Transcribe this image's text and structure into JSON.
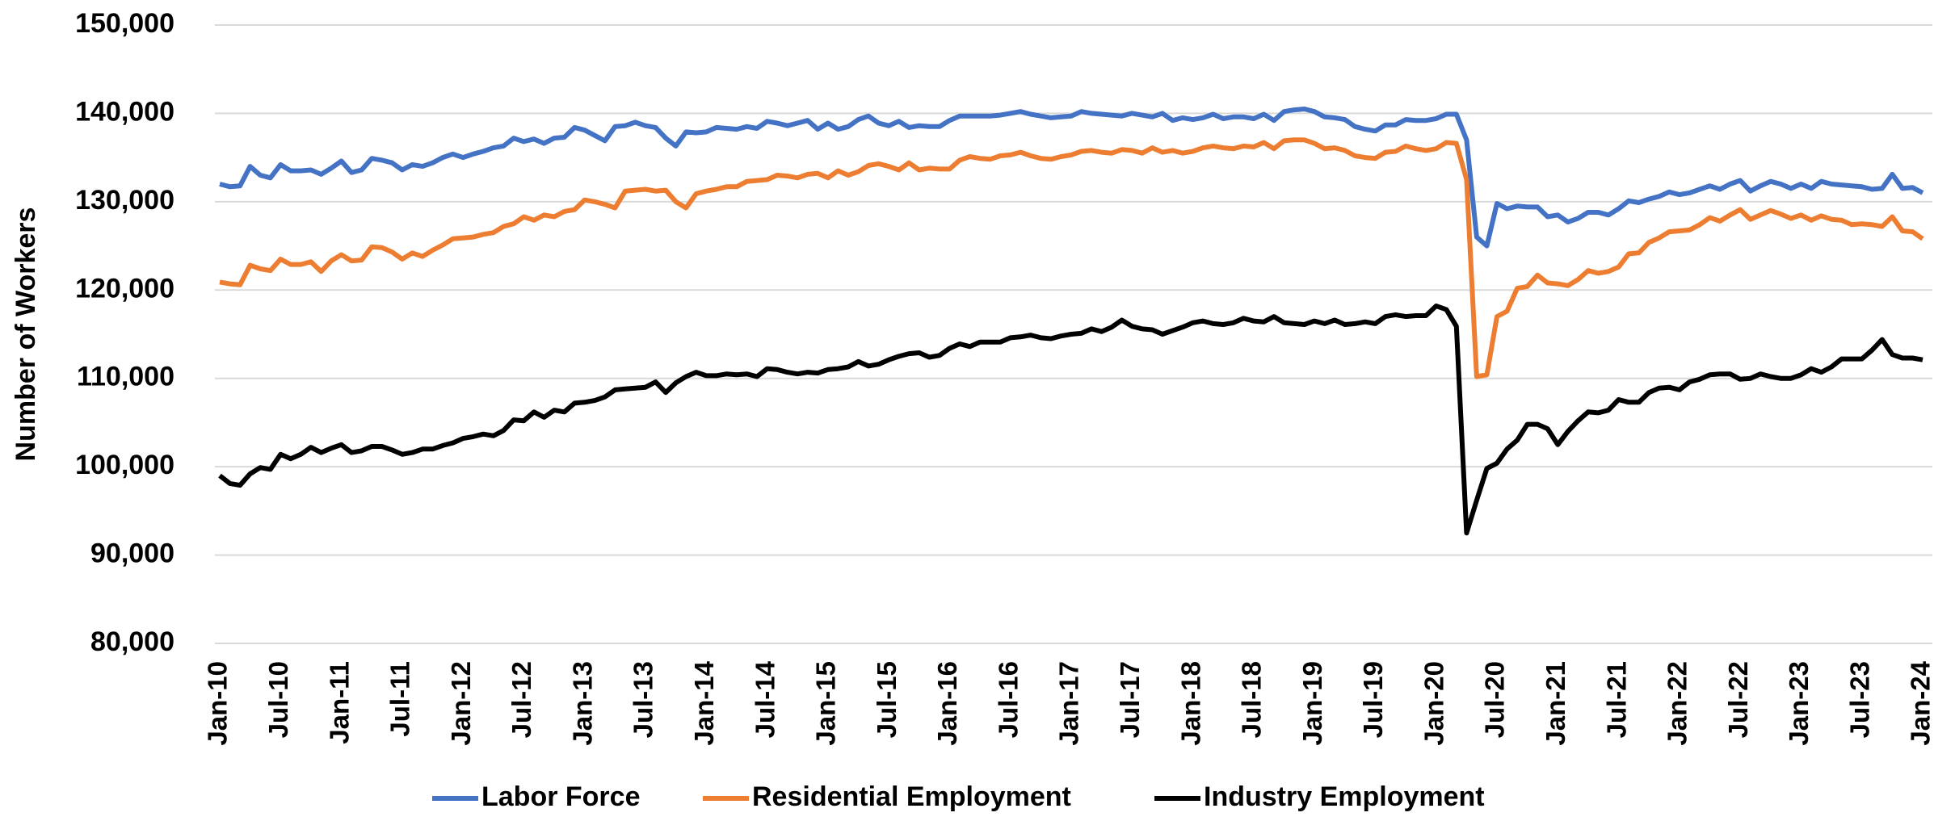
{
  "chart_data": {
    "type": "line",
    "y_label": "Number of Workers",
    "categories": [
      "Jan-10",
      null,
      null,
      null,
      null,
      null,
      "Jul-10",
      null,
      null,
      null,
      null,
      null,
      "Jan-11",
      null,
      null,
      null,
      null,
      null,
      "Jul-11",
      null,
      null,
      null,
      null,
      null,
      "Jan-12",
      null,
      null,
      null,
      null,
      null,
      "Jul-12",
      null,
      null,
      null,
      null,
      null,
      "Jan-13",
      null,
      null,
      null,
      null,
      null,
      "Jul-13",
      null,
      null,
      null,
      null,
      null,
      "Jan-14",
      null,
      null,
      null,
      null,
      null,
      "Jul-14",
      null,
      null,
      null,
      null,
      null,
      "Jan-15",
      null,
      null,
      null,
      null,
      null,
      "Jul-15",
      null,
      null,
      null,
      null,
      null,
      "Jan-16",
      null,
      null,
      null,
      null,
      null,
      "Jul-16",
      null,
      null,
      null,
      null,
      null,
      "Jan-17",
      null,
      null,
      null,
      null,
      null,
      "Jul-17",
      null,
      null,
      null,
      null,
      null,
      "Jan-18",
      null,
      null,
      null,
      null,
      null,
      "Jul-18",
      null,
      null,
      null,
      null,
      null,
      "Jan-19",
      null,
      null,
      null,
      null,
      null,
      "Jul-19",
      null,
      null,
      null,
      null,
      null,
      "Jan-20",
      null,
      null,
      null,
      null,
      null,
      "Jul-20",
      null,
      null,
      null,
      null,
      null,
      "Jan-21",
      null,
      null,
      null,
      null,
      null,
      "Jul-21",
      null,
      null,
      null,
      null,
      null,
      "Jan-22",
      null,
      null,
      null,
      null,
      null,
      "Jul-22",
      null,
      null,
      null,
      null,
      null,
      "Jan-23",
      null,
      null,
      null,
      null,
      null,
      "Jul-23",
      null,
      null,
      null,
      null,
      null,
      "Jan-24"
    ],
    "series": [
      {
        "name": "Labor Force",
        "color": "#4472c4",
        "values": [
          132000,
          131700,
          131800,
          134000,
          133000,
          132700,
          134200,
          133500,
          133500,
          133600,
          133100,
          133800,
          134600,
          133300,
          133600,
          134900,
          134700,
          134400,
          133600,
          134200,
          134000,
          134400,
          135000,
          135400,
          135000,
          135400,
          135700,
          136100,
          136300,
          137200,
          136800,
          137100,
          136600,
          137200,
          137300,
          138400,
          138100,
          137500,
          136900,
          138500,
          138600,
          139000,
          138600,
          138400,
          137200,
          136300,
          137900,
          137800,
          137900,
          138400,
          138300,
          138200,
          138500,
          138300,
          139100,
          138900,
          138600,
          138900,
          139200,
          138200,
          138900,
          138200,
          138500,
          139300,
          139700,
          138900,
          138600,
          139100,
          138400,
          138600,
          138500,
          138500,
          139200,
          139700,
          139700,
          139700,
          139700,
          139800,
          140000,
          140200,
          139900,
          139700,
          139500,
          139600,
          139700,
          140200,
          140000,
          139900,
          139800,
          139700,
          140000,
          139800,
          139600,
          140000,
          139200,
          139500,
          139300,
          139500,
          139900,
          139400,
          139600,
          139600,
          139400,
          139900,
          139200,
          140200,
          140400,
          140500,
          140200,
          139600,
          139500,
          139300,
          138500,
          138200,
          138000,
          138700,
          138700,
          139300,
          139200,
          139200,
          139400,
          139900,
          139900,
          137000,
          126000,
          125000,
          129800,
          129200,
          129500,
          129400,
          129400,
          128300,
          128500,
          127700,
          128100,
          128800,
          128800,
          128500,
          129200,
          130100,
          129900,
          130300,
          130600,
          131100,
          130800,
          131000,
          131400,
          131800,
          131400,
          132000,
          132400,
          131200,
          131800,
          132300,
          132000,
          131500,
          132000,
          131500,
          132300,
          132000,
          131900,
          131800,
          131700,
          131400,
          131500,
          133100,
          131500,
          131600,
          131000
        ]
      },
      {
        "name": "Residential Employment",
        "color": "#ed7d31",
        "values": [
          120900,
          120700,
          120600,
          122800,
          122400,
          122200,
          123500,
          122900,
          122900,
          123200,
          122100,
          123300,
          124000,
          123300,
          123400,
          124900,
          124800,
          124300,
          123500,
          124200,
          123800,
          124500,
          125100,
          125800,
          125900,
          126000,
          126300,
          126500,
          127200,
          127500,
          128300,
          127900,
          128500,
          128300,
          128900,
          129100,
          130200,
          130000,
          129700,
          129300,
          131200,
          131300,
          131400,
          131200,
          131300,
          130000,
          129300,
          130900,
          131200,
          131400,
          131700,
          131700,
          132300,
          132400,
          132500,
          133000,
          132900,
          132700,
          133100,
          133200,
          132700,
          133500,
          133000,
          133400,
          134100,
          134300,
          134000,
          133600,
          134400,
          133600,
          133800,
          133700,
          133700,
          134700,
          135100,
          134900,
          134800,
          135200,
          135300,
          135600,
          135200,
          134900,
          134800,
          135100,
          135300,
          135700,
          135800,
          135600,
          135500,
          135900,
          135800,
          135500,
          136100,
          135600,
          135800,
          135500,
          135700,
          136100,
          136300,
          136100,
          136000,
          136300,
          136200,
          136700,
          136000,
          136900,
          137000,
          137000,
          136600,
          136000,
          136100,
          135800,
          135200,
          135000,
          134900,
          135600,
          135700,
          136300,
          136000,
          135800,
          136000,
          136700,
          136600,
          132500,
          110200,
          110400,
          117000,
          117600,
          120200,
          120400,
          121700,
          120800,
          120700,
          120500,
          121200,
          122200,
          121900,
          122100,
          122600,
          124100,
          124200,
          125400,
          125900,
          126600,
          126700,
          126800,
          127400,
          128200,
          127800,
          128500,
          129100,
          128000,
          128500,
          129000,
          128600,
          128100,
          128500,
          127900,
          128400,
          128000,
          127900,
          127400,
          127500,
          127400,
          127200,
          128300,
          126700,
          126600,
          125800
        ]
      },
      {
        "name": "Industry Employment",
        "color": "#000000",
        "values": [
          99000,
          98100,
          97900,
          99200,
          99900,
          99700,
          101400,
          100900,
          101400,
          102200,
          101600,
          102100,
          102500,
          101600,
          101800,
          102300,
          102300,
          101900,
          101400,
          101600,
          102000,
          102000,
          102400,
          102700,
          103200,
          103400,
          103700,
          103500,
          104100,
          105300,
          105200,
          106200,
          105600,
          106400,
          106200,
          107200,
          107300,
          107500,
          107900,
          108700,
          108800,
          108900,
          109000,
          109600,
          108400,
          109500,
          110200,
          110700,
          110300,
          110300,
          110500,
          110400,
          110500,
          110200,
          111100,
          111000,
          110700,
          110500,
          110700,
          110600,
          111000,
          111100,
          111300,
          111900,
          111400,
          111600,
          112100,
          112500,
          112800,
          112900,
          112400,
          112600,
          113400,
          113900,
          113600,
          114100,
          114100,
          114100,
          114600,
          114700,
          114900,
          114600,
          114500,
          114800,
          115000,
          115100,
          115600,
          115300,
          115800,
          116600,
          115900,
          115600,
          115500,
          115000,
          115400,
          115800,
          116300,
          116500,
          116200,
          116100,
          116300,
          116800,
          116500,
          116400,
          117000,
          116300,
          116200,
          116100,
          116500,
          116200,
          116600,
          116100,
          116200,
          116400,
          116200,
          117000,
          117200,
          117000,
          117100,
          117100,
          118200,
          117800,
          115900,
          92500,
          96200,
          99800,
          100400,
          102000,
          103000,
          104800,
          104800,
          104300,
          102500,
          104000,
          105200,
          106200,
          106100,
          106400,
          107600,
          107300,
          107300,
          108400,
          108900,
          109000,
          108700,
          109600,
          109900,
          110400,
          110500,
          110500,
          109900,
          110000,
          110500,
          110200,
          110000,
          110000,
          110400,
          111100,
          110700,
          111300,
          112200,
          112200,
          112200,
          113200,
          114400,
          112700,
          112300,
          112300,
          112100
        ]
      }
    ],
    "ylim": [
      80000,
      150000
    ],
    "yticks": [
      {
        "value": 80000,
        "label": "80,000"
      },
      {
        "value": 90000,
        "label": "90,000"
      },
      {
        "value": 100000,
        "label": "100,000"
      },
      {
        "value": 110000,
        "label": "110,000"
      },
      {
        "value": 120000,
        "label": "120,000"
      },
      {
        "value": 130000,
        "label": "130,000"
      },
      {
        "value": 140000,
        "label": "140,000"
      },
      {
        "value": 150000,
        "label": "150,000"
      }
    ],
    "grid": true,
    "legend": "bottom"
  }
}
